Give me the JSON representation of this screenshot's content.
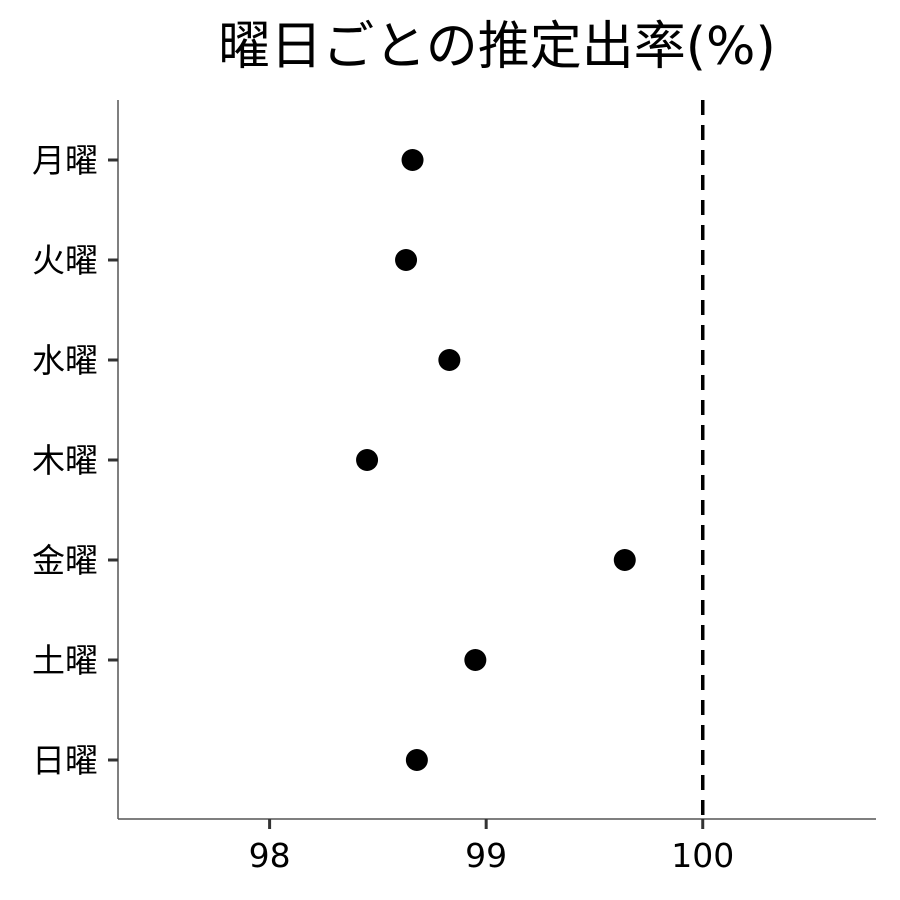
{
  "chart_data": {
    "type": "scatter",
    "title": "曜日ごとの推定出率(%)",
    "xlabel": "",
    "ylabel": "",
    "categories": [
      "月曜",
      "火曜",
      "水曜",
      "木曜",
      "金曜",
      "土曜",
      "日曜"
    ],
    "values": [
      98.66,
      98.63,
      98.83,
      98.45,
      99.64,
      98.95,
      98.68
    ],
    "xlim": [
      97.3,
      100.8
    ],
    "xticks": [
      98,
      99,
      100
    ],
    "reference_line": {
      "x": 100,
      "style": "dashed"
    },
    "grid": false
  }
}
